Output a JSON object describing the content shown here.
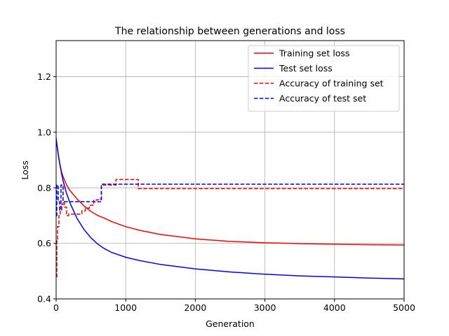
{
  "chart_data": {
    "type": "line",
    "title": "The relationship between generations and loss",
    "xlabel": "Generation",
    "ylabel": "Loss",
    "xlim": [
      0,
      5000
    ],
    "ylim": [
      0.4,
      1.33
    ],
    "xticks": [
      0,
      1000,
      2000,
      3000,
      4000,
      5000
    ],
    "xtick_labels": [
      "0",
      "1000",
      "2000",
      "3000",
      "4000",
      "5000"
    ],
    "yticks": [
      0.4,
      0.6,
      0.8,
      1.0,
      1.2
    ],
    "ytick_labels": [
      "0.4",
      "0.6",
      "0.8",
      "1.0",
      "1.2"
    ],
    "grid": true,
    "legend_position": "top-right",
    "series": [
      {
        "name": "Training set loss",
        "color": "#ff0000",
        "dash": "solid",
        "x": [
          0,
          25,
          50,
          75,
          100,
          150,
          200,
          300,
          400,
          500,
          600,
          700,
          800,
          1000,
          1200,
          1500,
          2000,
          2500,
          3000,
          3500,
          4000,
          4500,
          5000
        ],
        "y": [
          0.98,
          0.93,
          0.89,
          0.86,
          0.84,
          0.81,
          0.79,
          0.76,
          0.735,
          0.715,
          0.7,
          0.69,
          0.678,
          0.66,
          0.647,
          0.632,
          0.616,
          0.607,
          0.602,
          0.599,
          0.597,
          0.595,
          0.594
        ]
      },
      {
        "name": "Test set loss",
        "color": "#0000ff",
        "dash": "solid",
        "x": [
          0,
          25,
          50,
          75,
          100,
          150,
          200,
          300,
          400,
          500,
          600,
          700,
          800,
          1000,
          1200,
          1500,
          2000,
          2500,
          3000,
          3500,
          4000,
          4500,
          5000
        ],
        "y": [
          0.975,
          0.93,
          0.89,
          0.855,
          0.825,
          0.78,
          0.745,
          0.69,
          0.65,
          0.62,
          0.597,
          0.58,
          0.567,
          0.55,
          0.538,
          0.524,
          0.508,
          0.497,
          0.489,
          0.483,
          0.479,
          0.475,
          0.472
        ]
      },
      {
        "name": "Accuracy of training set",
        "color": "#ff0000",
        "dash": "dashed",
        "step": true,
        "x": [
          0,
          10,
          20,
          40,
          60,
          80,
          100,
          120,
          150,
          180,
          370,
          420,
          480,
          540,
          580,
          620,
          650,
          860,
          1180,
          5000
        ],
        "y": [
          0.48,
          0.61,
          0.66,
          0.7,
          0.72,
          0.74,
          0.75,
          0.73,
          0.7,
          0.705,
          0.717,
          0.727,
          0.737,
          0.755,
          0.757,
          0.76,
          0.81,
          0.83,
          0.797,
          0.797
        ]
      },
      {
        "name": "Accuracy of test set",
        "color": "#0000ff",
        "dash": "dashed",
        "step": true,
        "x": [
          0,
          10,
          30,
          50,
          70,
          100,
          130,
          650,
          5000
        ],
        "y": [
          0.7,
          0.81,
          0.75,
          0.72,
          0.81,
          0.75,
          0.75,
          0.813,
          0.813
        ]
      }
    ]
  }
}
